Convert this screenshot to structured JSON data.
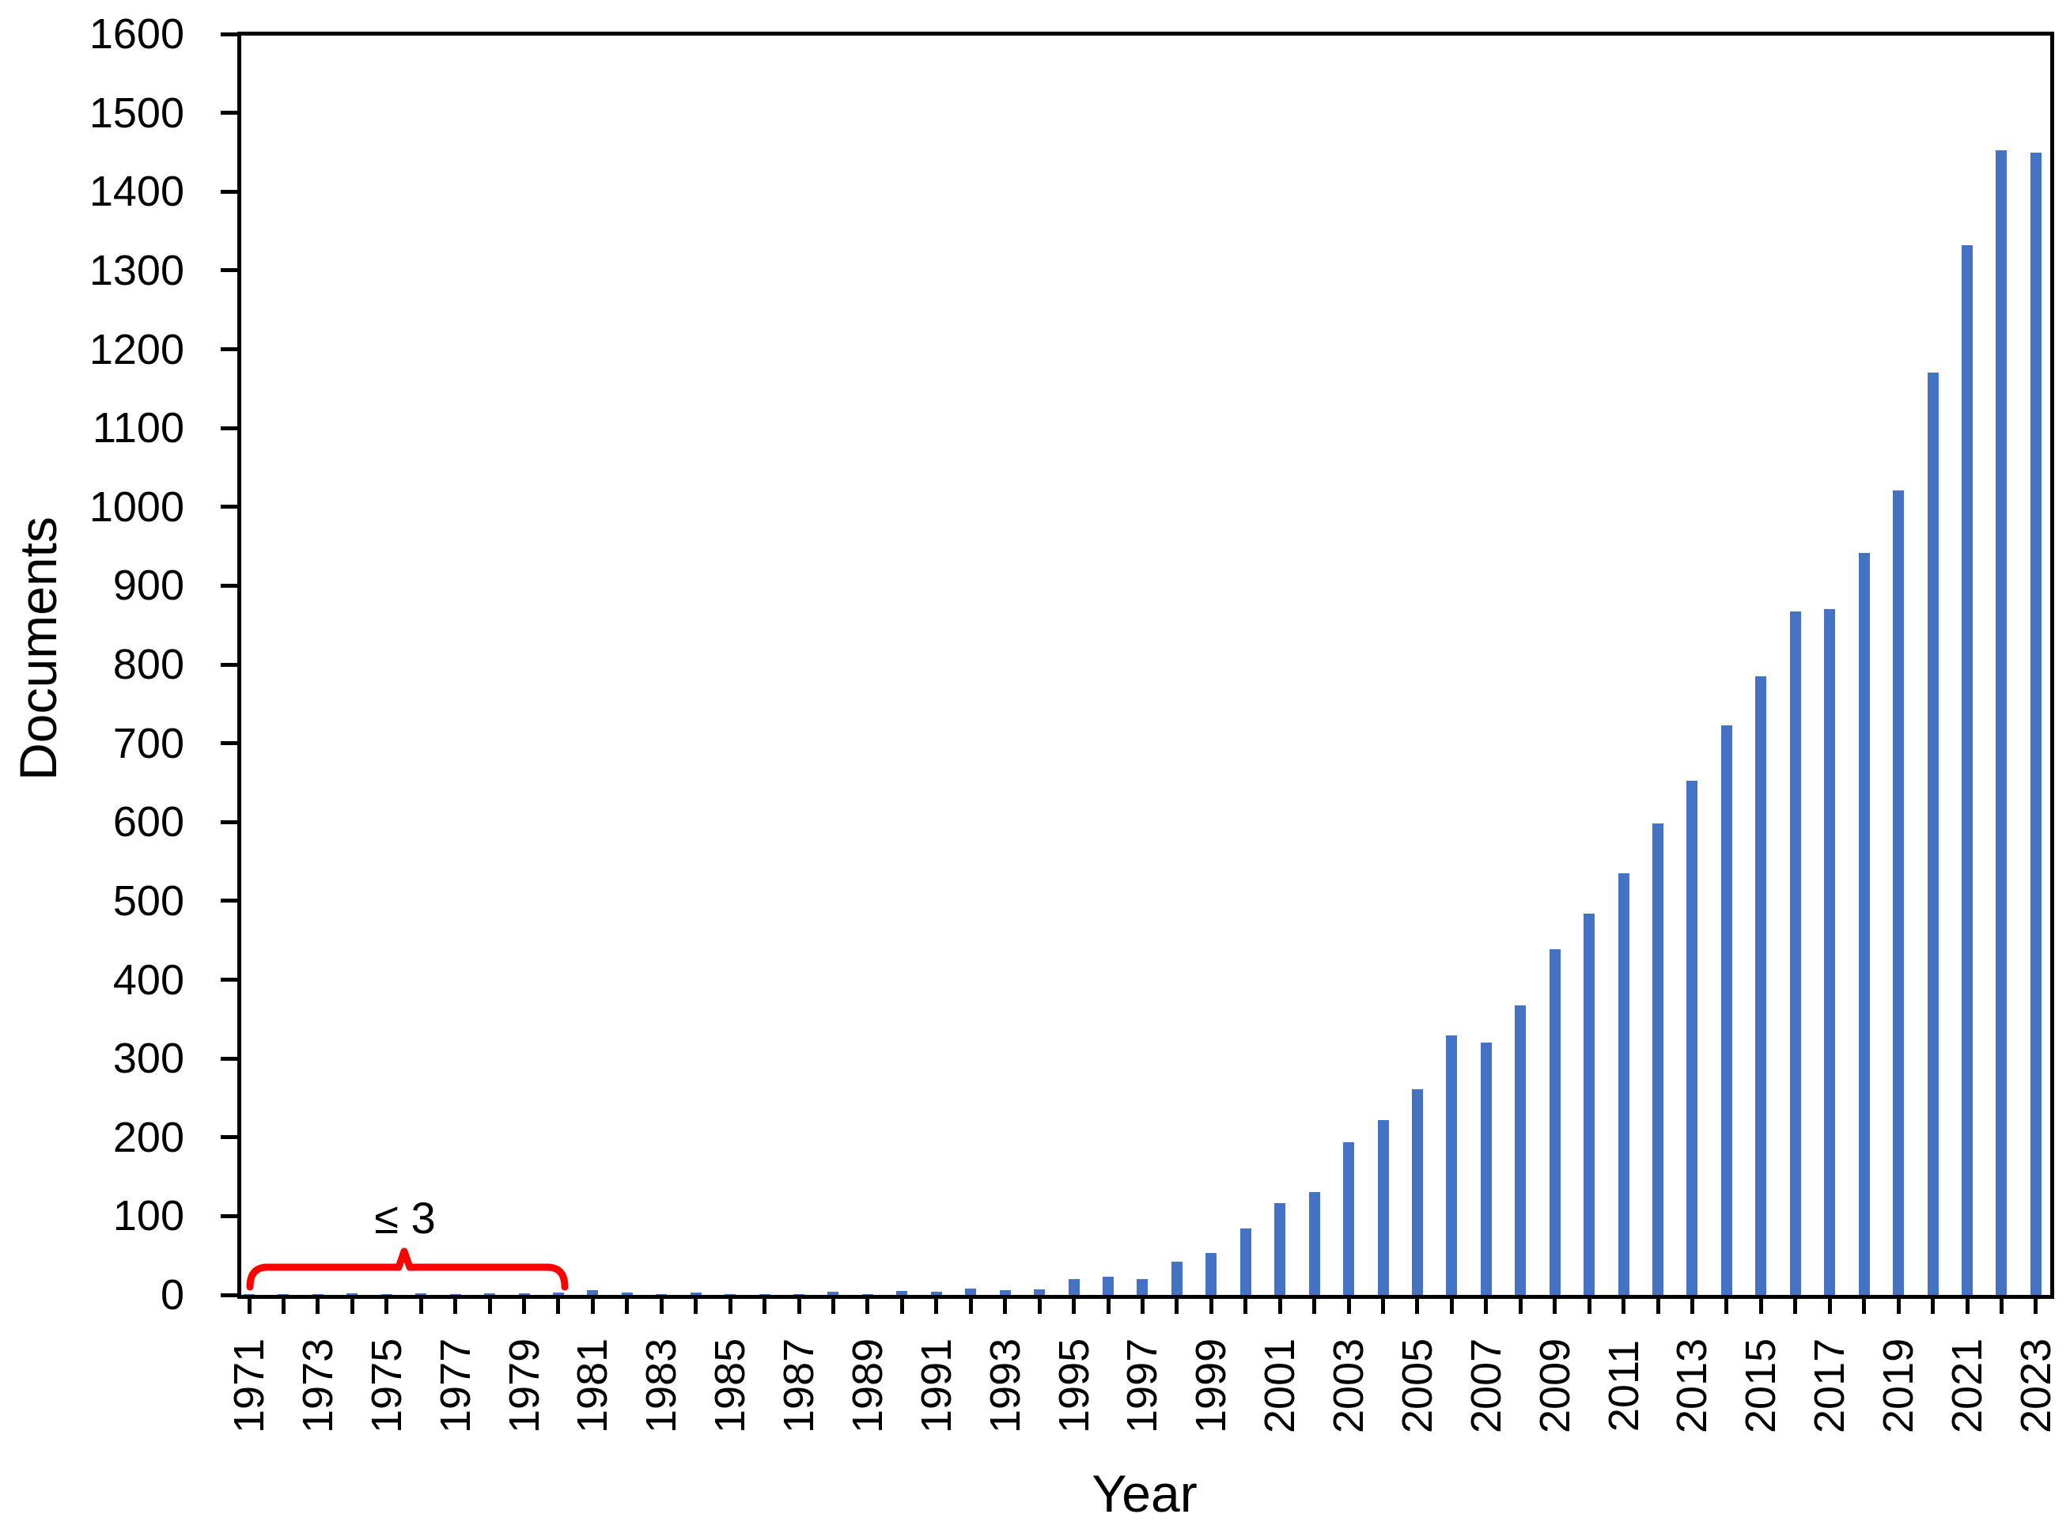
{
  "chart_data": {
    "type": "bar",
    "title": "",
    "xlabel": "Year",
    "ylabel": "Documents",
    "ylim": [
      0,
      1600
    ],
    "ytick_step": 100,
    "ytick_labels": [
      "0",
      "100",
      "200",
      "300",
      "400",
      "500",
      "600",
      "700",
      "800",
      "900",
      "1000",
      "1100",
      "1200",
      "1300",
      "1400",
      "1500",
      "1600"
    ],
    "x_label_every": 2,
    "x_tick_labels": [
      "1971",
      "1973",
      "1975",
      "1977",
      "1979",
      "1981",
      "1983",
      "1985",
      "1987",
      "1989",
      "1991",
      "1993",
      "1995",
      "1997",
      "1999",
      "2001",
      "2003",
      "2005",
      "2007",
      "2009",
      "2011",
      "2013",
      "2015",
      "2017",
      "2019",
      "2021",
      "2023"
    ],
    "bar_color": "#4472C4",
    "axis_color": "#000000",
    "grid": false,
    "legend": "none",
    "categories": [
      1971,
      1972,
      1973,
      1974,
      1975,
      1976,
      1977,
      1978,
      1979,
      1980,
      1981,
      1982,
      1983,
      1984,
      1985,
      1986,
      1987,
      1988,
      1989,
      1990,
      1991,
      1992,
      1993,
      1994,
      1995,
      1996,
      1997,
      1998,
      1999,
      2000,
      2001,
      2002,
      2003,
      2004,
      2005,
      2006,
      2007,
      2008,
      2009,
      2010,
      2011,
      2012,
      2013,
      2014,
      2015,
      2016,
      2017,
      2018,
      2019,
      2020,
      2021,
      2022,
      2023
    ],
    "values": [
      1,
      1,
      1,
      2,
      1,
      2,
      1,
      2,
      2,
      3,
      6,
      3,
      1,
      3,
      1,
      1,
      1,
      4,
      1,
      5,
      4,
      8,
      6,
      7,
      20,
      23,
      20,
      42,
      53,
      84,
      116,
      130,
      194,
      222,
      261,
      329,
      320,
      367,
      439,
      484,
      535,
      598,
      652,
      723,
      785,
      867,
      870,
      942,
      1021,
      1170,
      1332,
      1452,
      1449
    ],
    "annotation": {
      "text": "≤ 3",
      "color": "#FF0000",
      "start_year": 1971,
      "end_year": 1980
    }
  }
}
